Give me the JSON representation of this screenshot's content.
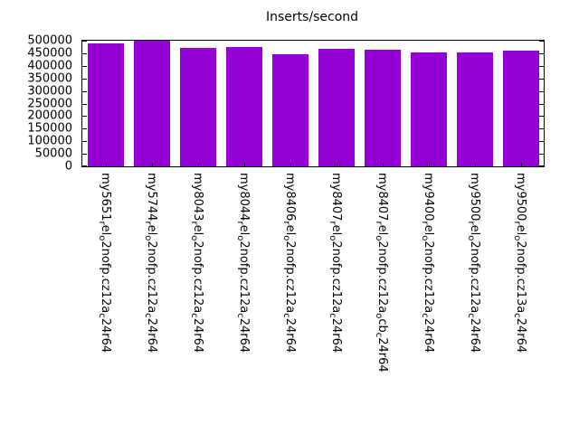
{
  "chart_data": {
    "type": "bar",
    "title": "Inserts/second",
    "label_format": "underscore-prefixed characters render as subscripts",
    "categories": [
      "my5651_rel_o2nofp.cz12a_c24r64",
      "my5744_rel_o2nofp.cz12a_c24r64",
      "my8043_rel_o2nofp.cz12a_c24r64",
      "my8044_rel_o2nofp.cz12a_c24r64",
      "my8406_rel_o2nofp.cz12a_c24r64",
      "my8407_rel_o2nofp.cz12a_c24r64",
      "my8407_rel_o2nofp.cz12a_ocb_c24r64",
      "my9400_rel_o2nofp.cz12a_c24r64",
      "my9500_rel_o2nofp.cz12a_c24r64",
      "my9500_rel_o2nofp.cz13a_c24r64"
    ],
    "values": [
      488000,
      499000,
      471000,
      474000,
      447000,
      467000,
      464000,
      452000,
      452000,
      461000
    ],
    "ylim": [
      0,
      500000
    ],
    "yticks": [
      0,
      50000,
      100000,
      150000,
      200000,
      250000,
      300000,
      350000,
      400000,
      450000,
      500000
    ],
    "bar_color": "#9400d3",
    "grid": false,
    "legend": "none",
    "x_label_rotation_deg": 90
  }
}
